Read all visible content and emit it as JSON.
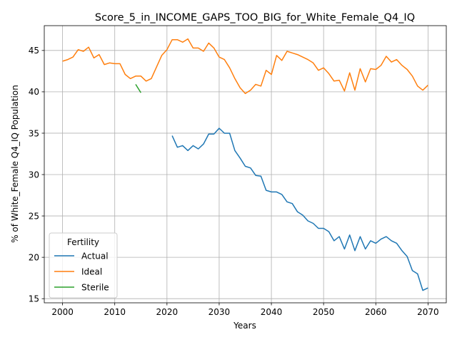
{
  "chart_data": {
    "type": "line",
    "title": "Score_5_in_INCOME_GAPS_TOO_BIG_for_White_Female_Q4_IQ",
    "xlabel": "Years",
    "ylabel": "% of White_Female Q4_IQ Population",
    "xlim": [
      1996.5,
      2073.5
    ],
    "ylim": [
      14.5,
      48.0
    ],
    "xticks": [
      2000,
      2010,
      2020,
      2030,
      2040,
      2050,
      2060,
      2070
    ],
    "yticks": [
      15,
      20,
      25,
      30,
      35,
      40,
      45
    ],
    "grid": true,
    "legend": {
      "title": "Fertility",
      "placement": "lower-left"
    },
    "series": [
      {
        "name": "Actual",
        "color": "#1f77b4",
        "x": [
          2021,
          2022,
          2023,
          2024,
          2025,
          2026,
          2027,
          2028,
          2029,
          2030,
          2031,
          2032,
          2033,
          2034,
          2035,
          2036,
          2037,
          2038,
          2039,
          2040,
          2041,
          2042,
          2043,
          2044,
          2045,
          2046,
          2047,
          2048,
          2049,
          2050,
          2051,
          2052,
          2053,
          2054,
          2055,
          2056,
          2057,
          2058,
          2059,
          2060,
          2061,
          2062,
          2063,
          2064,
          2065,
          2066,
          2067,
          2068,
          2069,
          2070
        ],
        "y": [
          34.7,
          33.3,
          33.5,
          32.9,
          33.5,
          33.1,
          33.7,
          34.9,
          34.9,
          35.6,
          35.0,
          35.0,
          32.9,
          32.0,
          31.0,
          30.8,
          29.9,
          29.8,
          28.1,
          27.9,
          27.9,
          27.6,
          26.7,
          26.5,
          25.5,
          25.1,
          24.4,
          24.1,
          23.5,
          23.5,
          23.1,
          22.0,
          22.5,
          21.0,
          22.7,
          20.8,
          22.5,
          21.0,
          22.0,
          21.7,
          22.2,
          22.5,
          22.0,
          21.7,
          20.8,
          20.1,
          18.4,
          18.0,
          16.0,
          16.3
        ]
      },
      {
        "name": "Ideal",
        "color": "#ff7f0e",
        "x": [
          2000,
          2001,
          2002,
          2003,
          2004,
          2005,
          2006,
          2007,
          2008,
          2009,
          2010,
          2011,
          2012,
          2013,
          2014,
          2015,
          2016,
          2017,
          2018,
          2019,
          2020,
          2021,
          2022,
          2023,
          2024,
          2025,
          2026,
          2027,
          2028,
          2029,
          2030,
          2031,
          2032,
          2033,
          2034,
          2035,
          2036,
          2037,
          2038,
          2039,
          2040,
          2041,
          2042,
          2043,
          2044,
          2045,
          2046,
          2047,
          2048,
          2049,
          2050,
          2051,
          2052,
          2053,
          2054,
          2055,
          2056,
          2057,
          2058,
          2059,
          2060,
          2061,
          2062,
          2063,
          2064,
          2065,
          2066,
          2067,
          2068,
          2069,
          2070
        ],
        "y": [
          43.7,
          43.9,
          44.2,
          45.1,
          44.9,
          45.4,
          44.1,
          44.5,
          43.3,
          43.5,
          43.4,
          43.4,
          42.1,
          41.6,
          41.9,
          41.9,
          41.3,
          41.6,
          43.0,
          44.4,
          45.1,
          46.3,
          46.3,
          46.0,
          46.4,
          45.3,
          45.3,
          44.9,
          45.9,
          45.3,
          44.2,
          43.9,
          42.9,
          41.6,
          40.5,
          39.8,
          40.2,
          40.9,
          40.7,
          42.6,
          42.1,
          44.4,
          43.8,
          44.9,
          44.7,
          44.5,
          44.2,
          43.9,
          43.5,
          42.6,
          42.9,
          42.2,
          41.3,
          41.4,
          40.1,
          42.3,
          40.2,
          42.8,
          41.2,
          42.8,
          42.7,
          43.2,
          44.3,
          43.6,
          43.9,
          43.2,
          42.7,
          41.9,
          40.7,
          40.2,
          40.8
        ]
      },
      {
        "name": "Sterile",
        "color": "#2ca02c",
        "x": [
          2014,
          2015
        ],
        "y": [
          40.9,
          39.9
        ]
      }
    ]
  }
}
